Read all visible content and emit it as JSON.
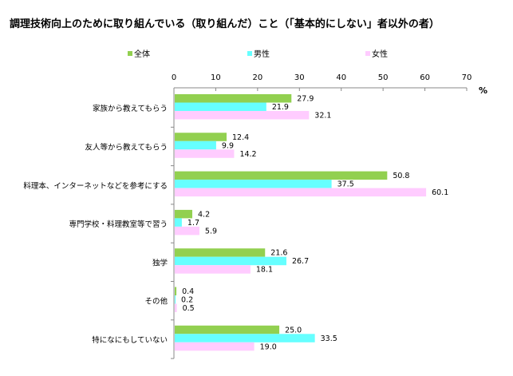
{
  "chart_data": {
    "type": "bar",
    "orientation": "horizontal",
    "title": "調理技術向上のために取り組んでいる（取り組んだ）こと（「基本的にしない」者以外の者）",
    "unit_label": "%",
    "xlim": [
      0,
      70
    ],
    "ticks": [
      0,
      10,
      20,
      30,
      40,
      50,
      60,
      70
    ],
    "legend_placement": "top",
    "categories": [
      "家族から教えてもらう",
      "友人等から教えてもらう",
      "料理本、インターネットなどを参考にする",
      "専門学校・料理教室等で習う",
      "独学",
      "その他",
      "特になにもしていない"
    ],
    "series": [
      {
        "name": "全体",
        "color": "#92d050",
        "values": [
          27.9,
          12.4,
          50.8,
          4.2,
          21.6,
          0.4,
          25.0
        ]
      },
      {
        "name": "男性",
        "color": "#66ffff",
        "values": [
          21.9,
          9.9,
          37.5,
          1.7,
          26.7,
          0.2,
          33.5
        ]
      },
      {
        "name": "女性",
        "color": "#ffccff",
        "values": [
          32.1,
          14.2,
          60.1,
          5.9,
          18.1,
          0.5,
          19.0
        ]
      }
    ]
  }
}
